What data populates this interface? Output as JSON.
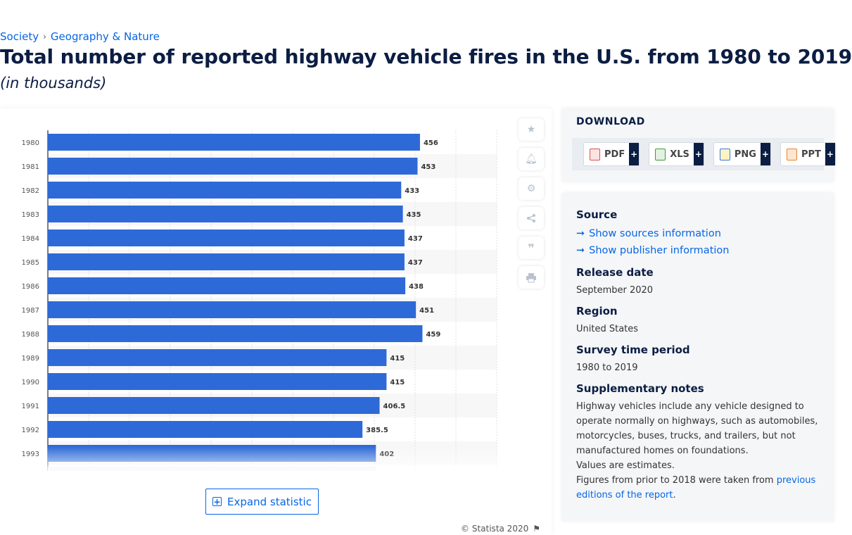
{
  "breadcrumb": {
    "item1": "Society",
    "separator": "›",
    "item2": "Geography & Nature"
  },
  "title": "Total number of reported highway vehicle fires in the U.S. from 1980 to 2019",
  "subtitle": "(in thousands)",
  "chart_data": {
    "type": "bar",
    "orientation": "horizontal",
    "title": "",
    "xlabel": "",
    "ylabel": "",
    "categories": [
      "1980",
      "1981",
      "1982",
      "1983",
      "1984",
      "1985",
      "1986",
      "1987",
      "1988",
      "1989",
      "1990",
      "1991",
      "1992",
      "1993"
    ],
    "values": [
      456,
      453,
      433,
      435,
      437,
      437,
      438,
      451,
      459,
      415,
      415,
      406.5,
      385.5,
      402
    ],
    "value_labels": [
      "456",
      "453",
      "433",
      "435",
      "437",
      "437",
      "438",
      "451",
      "459",
      "415",
      "415",
      "406.5",
      "385.5",
      "402"
    ],
    "xlim": [
      0,
      550
    ],
    "grid": true,
    "bar_color": "#2e6ad7",
    "legend": "none"
  },
  "expand_label": "Expand statistic",
  "credit": "© Statista 2020",
  "tools": {
    "icons": [
      "star-icon",
      "bell-icon",
      "gear-icon",
      "share-icon",
      "quote-icon",
      "print-icon"
    ]
  },
  "download": {
    "title": "DOWNLOAD",
    "buttons": [
      {
        "label": "PDF",
        "plus": "+",
        "color": "#d9534f"
      },
      {
        "label": "XLS",
        "plus": "+",
        "color": "#3c9a3c"
      },
      {
        "label": "PNG",
        "plus": "+",
        "color": "#3a7bd5"
      },
      {
        "label": "PPT",
        "plus": "+",
        "color": "#e8832a"
      }
    ]
  },
  "info": {
    "source_heading": "Source",
    "show_sources": "Show sources information",
    "show_publisher": "Show publisher information",
    "release_heading": "Release date",
    "release_value": "September 2020",
    "region_heading": "Region",
    "region_value": "United States",
    "survey_heading": "Survey time period",
    "survey_value": "1980 to 2019",
    "notes_heading": "Supplementary notes",
    "notes_p1": "Highway vehicles include any vehicle designed to operate normally on highways, such as automobiles, motorcycles, buses, trucks, and trailers, but not manufactured homes on foundations.",
    "notes_p2": "Values are estimates.",
    "notes_p3_text": "Figures from prior to 2018 were taken from ",
    "notes_p3_link": "previous editions of the report",
    "notes_p3_end": "."
  },
  "accent_color": "#0666e5",
  "arrow_glyph": "➞"
}
